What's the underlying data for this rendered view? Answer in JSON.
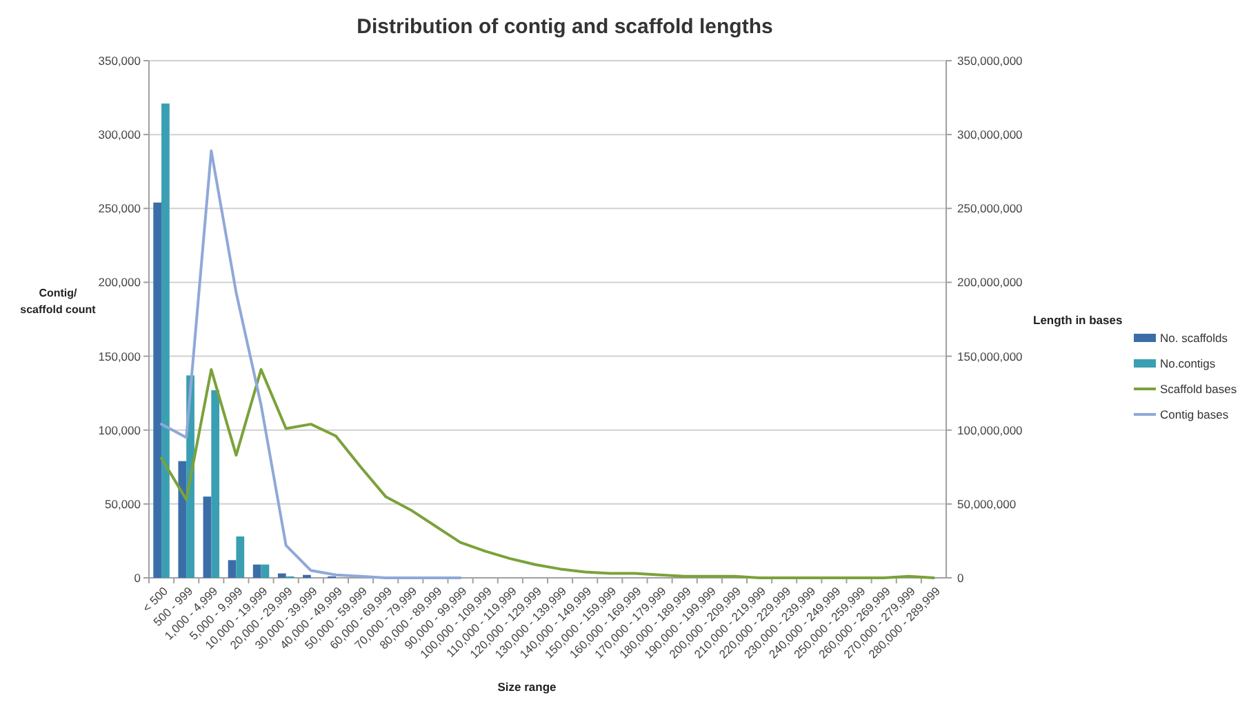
{
  "chart_data": {
    "type": "bar",
    "title": "Distribution of contig and scaffold lengths",
    "xlabel": "Size range",
    "ylabel": "Contig/\nscaffold count",
    "y2label": "Length in bases",
    "categories": [
      "< 500",
      "500 - 999",
      "1,000 - 4,999",
      "5,000 - 9,999",
      "10,000 - 19,999",
      "20,000 - 29,999",
      "30,000 - 39,999",
      "40,000 - 49,999",
      "50,000 - 59,999",
      "60,000 - 69,999",
      "70,000 - 79,999",
      "80,000 - 89,999",
      "90,000 - 99,999",
      "100,000 - 109,999",
      "110,000 - 119,999",
      "120,000 - 129,999",
      "130,000 - 139,999",
      "140,000 - 149,999",
      "150,000 - 159,999",
      "160,000 - 169,999",
      "170,000 - 179,999",
      "180,000 - 189,999",
      "190,000 - 199,999",
      "200,000 - 209,999",
      "210,000 - 219,999",
      "220,000 - 229,999",
      "230,000 - 239,999",
      "240,000 - 249,999",
      "250,000 - 259,999",
      "260,000 - 269,999",
      "270,000 - 279,999",
      "280,000 - 289,999"
    ],
    "series": [
      {
        "name": "No. scaffolds",
        "color": "#3b6ea8",
        "values": [
          254000,
          79000,
          55000,
          12000,
          9000,
          3000,
          2000,
          1000,
          0,
          0,
          0,
          0,
          0,
          0,
          0,
          0,
          0,
          0,
          0,
          0,
          0,
          0,
          0,
          0,
          0,
          0,
          0,
          0,
          0,
          0,
          0,
          0
        ]
      },
      {
        "name": "No.contigs",
        "color": "#3a9fb2",
        "values": [
          321000,
          137000,
          127000,
          28000,
          9000,
          1000,
          0,
          0,
          0,
          0,
          0,
          0,
          0,
          0,
          0,
          0,
          0,
          0,
          0,
          0,
          0,
          0,
          0,
          0,
          0,
          0,
          0,
          0,
          0,
          0,
          0,
          0
        ]
      },
      {
        "name": "Scaffold bases",
        "type": "line",
        "axis": "y2",
        "color": "#7aa23a",
        "values": [
          81000000,
          53000000,
          141000000,
          83000000,
          141000000,
          101000000,
          104000000,
          96000000,
          75000000,
          55000000,
          46000000,
          35000000,
          24000000,
          18000000,
          13000000,
          9000000,
          6000000,
          4000000,
          3000000,
          3000000,
          2000000,
          1000000,
          1000000,
          1000000,
          0,
          0,
          0,
          0,
          0,
          0,
          1000000,
          0
        ]
      },
      {
        "name": "Contig bases",
        "type": "line",
        "axis": "y2",
        "color": "#8fa8d8",
        "values": [
          104000000,
          95000000,
          289000000,
          193000000,
          117000000,
          22000000,
          5000000,
          2000000,
          1000000,
          0,
          0,
          0,
          0,
          null,
          null,
          null,
          null,
          null,
          null,
          null,
          null,
          null,
          null,
          null,
          null,
          null,
          null,
          null,
          null,
          null,
          null,
          null
        ]
      }
    ],
    "ylim": [
      0,
      350000
    ],
    "yticks": [
      0,
      {
        "value": 50000,
        "label": "50,000"
      },
      {
        "value": 100000,
        "label": "100,000"
      },
      {
        "value": 150000,
        "label": "150,000"
      },
      {
        "value": 200000,
        "label": "200,000"
      },
      {
        "value": 250000,
        "label": "250,000"
      },
      {
        "value": 300000,
        "label": "300,000"
      },
      {
        "value": 350000,
        "label": "350,000"
      }
    ],
    "y2lim": [
      0,
      350000000
    ],
    "y2ticks": [
      0,
      {
        "value": 50000000,
        "label": "50,000,000"
      },
      {
        "value": 100000000,
        "label": "100,000,000"
      },
      {
        "value": 150000000,
        "label": "150,000,000"
      },
      {
        "value": 200000000,
        "label": "200,000,000"
      },
      {
        "value": 250000000,
        "label": "250,000,000"
      },
      {
        "value": 300000000,
        "label": "300,000,000"
      },
      {
        "value": 350000000,
        "label": "350,000,000"
      }
    ],
    "grid": "y",
    "legend": "right"
  }
}
